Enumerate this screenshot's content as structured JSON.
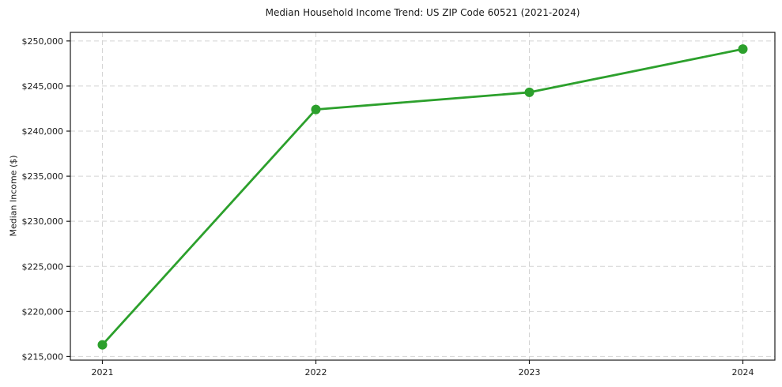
{
  "chart_data": {
    "type": "line",
    "title": "Median Household Income Trend: US ZIP Code 60521 (2021-2024)",
    "xlabel": "",
    "ylabel": "Median Income ($)",
    "x": [
      2021,
      2022,
      2023,
      2024
    ],
    "values": [
      216300,
      242400,
      244300,
      249100
    ],
    "xtick_labels": [
      "2021",
      "2022",
      "2023",
      "2024"
    ],
    "ytick_values": [
      215000,
      220000,
      225000,
      230000,
      235000,
      240000,
      245000,
      250000
    ],
    "ytick_labels": [
      "$215,000",
      "$220,000",
      "$225,000",
      "$230,000",
      "$235,000",
      "$240,000",
      "$245,000",
      "$250,000"
    ],
    "xlim": [
      2020.85,
      2024.15
    ],
    "ylim": [
      214600,
      250950
    ],
    "grid": true,
    "legend": "none",
    "line_color": "#2ca02c",
    "marker_color": "#2ca02c",
    "grid_color": "#d4d4d4",
    "axis_color": "#1a1a1a",
    "background_color": "#ffffff"
  }
}
